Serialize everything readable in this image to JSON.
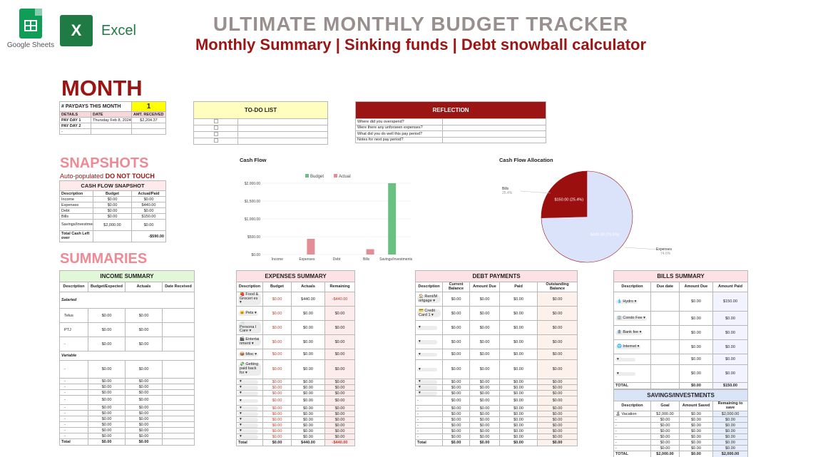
{
  "logos": {
    "google_sheets": "Google Sheets",
    "excel_mark": "X",
    "excel": "Excel"
  },
  "header": {
    "title": "ULTIMATE MONTHLY BUDGET TRACKER",
    "subtitle": "Monthly Summary | Sinking funds | Debt snowball calculator"
  },
  "month_heading": "MONTH",
  "paydays": {
    "label": "# PAYDAYS THIS MONTH",
    "count": "1",
    "columns": [
      "DETAILS",
      "DATE",
      "AMT. RECEIVED"
    ],
    "rows": [
      {
        "label": "PAY DAY 1",
        "date": "Thursday Feb 8, 2024",
        "amount": "$2,204.37"
      },
      {
        "label": "PAY DAY 2",
        "date": "",
        "amount": ""
      },
      {
        "label": "-",
        "date": "",
        "amount": ""
      }
    ]
  },
  "todo": {
    "title": "TO-DO LIST"
  },
  "reflection": {
    "title": "REFLECTION",
    "questions": [
      "Where did you overspend?",
      "Were there any unforseen expenses?",
      "What did you do well this pay period?",
      "Notes for next pay period?"
    ]
  },
  "snapshots": {
    "heading": "SNAPSHOTS",
    "note_prefix": "Auto-populated",
    "note_bold": "DO NOT TOUCH",
    "table_title": "CASH FLOW SNAPSHOT",
    "columns": [
      "Description",
      "Budget",
      "Actual/Paid"
    ],
    "rows": [
      {
        "d": "Income",
        "b": "$0.00",
        "a": "$0.00"
      },
      {
        "d": "Expenses",
        "b": "$0.00",
        "a": "$440.00"
      },
      {
        "d": "Debt",
        "b": "$0.00",
        "a": "$0.00"
      },
      {
        "d": "Bills",
        "b": "$0.00",
        "a": "$150.00"
      },
      {
        "d": "Savings/Investments",
        "b": "$2,000.00",
        "a": "$0.00"
      }
    ],
    "total_label": "Total Cash Left over",
    "total_value": "-$590.00"
  },
  "chart_data": [
    {
      "type": "bar",
      "title": "Cash Flow",
      "categories": [
        "Income",
        "Expenses",
        "Debt",
        "Bills",
        "Savings/Investments"
      ],
      "series": [
        {
          "name": "Budget",
          "values": [
            0,
            0,
            0,
            0,
            2000
          ],
          "color": "#6abf83"
        },
        {
          "name": "Actual",
          "values": [
            0,
            440,
            0,
            150,
            0
          ],
          "color": "#e38e95"
        }
      ],
      "yticks": [
        "$0.00",
        "$500.00",
        "$1,000.00",
        "$1,500.00",
        "$2,000.00"
      ],
      "ylim": [
        0,
        2000
      ],
      "legend": "top"
    },
    {
      "type": "pie",
      "title": "Cash Flow Allocation",
      "slices": [
        {
          "name": "Bills",
          "value": 150,
          "label": "$150.00 (25.4%)",
          "pct": "25.4%",
          "color": "#9b0f0f"
        },
        {
          "name": "Expenses",
          "value": 440,
          "label": "$440.00 (74.6%)",
          "pct": "74.6%",
          "color": "#dbe3fb"
        }
      ]
    }
  ],
  "summaries": {
    "heading": "SUMMARIES",
    "income": {
      "title": "INCOME SUMMARY",
      "columns": [
        "Description",
        "Budget/Expected",
        "Actuals",
        "Date Received"
      ],
      "salaried_label": "Salaried",
      "variable_label": "Variable",
      "salaried": [
        {
          "d": "Telus",
          "b": "$0.00",
          "a": "$0.00"
        },
        {
          "d": "PTJ",
          "b": "$0.00",
          "a": "$0.00"
        },
        {
          "d": "-",
          "b": "$0.00",
          "a": "$0.00"
        }
      ],
      "variable": [
        {
          "d": "-",
          "b": "$0.00",
          "a": "$0.00"
        },
        {
          "d": "-",
          "b": "$0.00",
          "a": "$0.00"
        },
        {
          "d": "-",
          "b": "$0.00",
          "a": "$0.00"
        },
        {
          "d": "-",
          "b": "$0.00",
          "a": "$0.00"
        },
        {
          "d": "-",
          "b": "$0.00",
          "a": "$0.00"
        },
        {
          "d": "-",
          "b": "$0.00",
          "a": "$0.00"
        },
        {
          "d": "-",
          "b": "$0.00",
          "a": "$0.00"
        },
        {
          "d": "-",
          "b": "$0.00",
          "a": "$0.00"
        },
        {
          "d": "-",
          "b": "$0.00",
          "a": "$0.00"
        },
        {
          "d": "-",
          "b": "$0.00",
          "a": "$0.00"
        },
        {
          "d": "-",
          "b": "$0.00",
          "a": "$0.00"
        }
      ],
      "total": {
        "d": "Total",
        "b": "$0.00",
        "a": "$0.00"
      }
    },
    "expenses": {
      "title": "EXPENSES SUMMARY",
      "columns": [
        "Description",
        "Budget",
        "Actuals",
        "Remaining"
      ],
      "rows": [
        {
          "icon": "🍓",
          "d": "Food & Groceri es",
          "b": "$0.00",
          "a": "$440.00",
          "r": "-$440.00"
        },
        {
          "icon": "🐱",
          "d": "Pets",
          "b": "$0.00",
          "a": "$0.00",
          "r": "$0.00"
        },
        {
          "icon": "🛁",
          "d": "Persona l Care",
          "b": "$0.00",
          "a": "$0.00",
          "r": "$0.00"
        },
        {
          "icon": "🎬",
          "d": "Entertai nment",
          "b": "$0.00",
          "a": "$0.00",
          "r": "$0.00"
        },
        {
          "icon": "📦",
          "d": "Misc",
          "b": "$0.00",
          "a": "$0.00",
          "r": "$0.00"
        },
        {
          "icon": "💸",
          "d": "Getting paid back for",
          "b": "$0.00",
          "a": "$0.00",
          "r": "$0.00"
        },
        {
          "icon": "",
          "d": "",
          "b": "$0.00",
          "a": "$0.00",
          "r": "$0.00"
        },
        {
          "icon": "",
          "d": "",
          "b": "$0.00",
          "a": "$0.00",
          "r": "$0.00"
        },
        {
          "icon": "",
          "d": "",
          "b": "$0.00",
          "a": "$0.00",
          "r": "$0.00"
        },
        {
          "icon": "",
          "d": "",
          "b": "$0.00",
          "a": "$0.00",
          "r": "$0.00"
        },
        {
          "icon": "",
          "d": "",
          "b": "$0.00",
          "a": "$0.00",
          "r": "$0.00"
        },
        {
          "icon": "",
          "d": "",
          "b": "$0.00",
          "a": "$0.00",
          "r": "$0.00"
        },
        {
          "icon": "",
          "d": "",
          "b": "$0.00",
          "a": "$0.00",
          "r": "$0.00"
        },
        {
          "icon": "",
          "d": "",
          "b": "$0.00",
          "a": "$0.00",
          "r": "$0.00"
        },
        {
          "icon": "",
          "d": "",
          "b": "$0.00",
          "a": "$0.00",
          "r": "$0.00"
        },
        {
          "icon": "",
          "d": "",
          "b": "$0.00",
          "a": "$0.00",
          "r": "$0.00"
        }
      ],
      "total": {
        "d": "Total",
        "b": "$0.00",
        "a": "$440.00",
        "r": "-$440.00"
      }
    },
    "debt": {
      "title": "DEBT PAYMENTS",
      "columns": [
        "Description",
        "Current Balance",
        "Amount Due",
        "Paid",
        "Outstanding Balance"
      ],
      "rows": [
        {
          "icon": "🏠",
          "d": "Rent/M ortgage",
          "c": "$0.00",
          "due": "$0.00",
          "p": "$0.00",
          "o": "$0.00"
        },
        {
          "icon": "💳",
          "d": "Credit Card 1",
          "c": "$0.00",
          "due": "$0.00",
          "p": "$0.00",
          "o": "$0.00"
        },
        {
          "icon": "",
          "d": "",
          "c": "$0.00",
          "due": "$0.00",
          "p": "$0.00",
          "o": "$0.00"
        },
        {
          "icon": "",
          "d": "",
          "c": "$0.00",
          "due": "$0.00",
          "p": "$0.00",
          "o": "$0.00"
        },
        {
          "icon": "",
          "d": "",
          "c": "$0.00",
          "due": "$0.00",
          "p": "$0.00",
          "o": "$0.00"
        },
        {
          "icon": "",
          "d": "",
          "c": "$0.00",
          "due": "$0.00",
          "p": "$0.00",
          "o": "$0.00"
        },
        {
          "icon": "",
          "d": "",
          "c": "$0.00",
          "due": "$0.00",
          "p": "$0.00",
          "o": "$0.00"
        },
        {
          "icon": "",
          "d": "",
          "c": "$0.00",
          "due": "$0.00",
          "p": "$0.00",
          "o": "$0.00"
        },
        {
          "icon": "",
          "d": "",
          "c": "$0.00",
          "due": "$0.00",
          "p": "$0.00",
          "o": "$0.00"
        },
        {
          "icon": "",
          "d": "-",
          "c": "$0.00",
          "due": "$0.00",
          "p": "$0.00",
          "o": "$0.00"
        },
        {
          "icon": "",
          "d": "-",
          "c": "$0.00",
          "due": "$0.00",
          "p": "$0.00",
          "o": "$0.00"
        },
        {
          "icon": "",
          "d": "-",
          "c": "$0.00",
          "due": "$0.00",
          "p": "$0.00",
          "o": "$0.00"
        },
        {
          "icon": "",
          "d": "-",
          "c": "$0.00",
          "due": "$0.00",
          "p": "$0.00",
          "o": "$0.00"
        },
        {
          "icon": "",
          "d": "-",
          "c": "$0.00",
          "due": "$0.00",
          "p": "$0.00",
          "o": "$0.00"
        },
        {
          "icon": "",
          "d": "-",
          "c": "$0.00",
          "due": "$0.00",
          "p": "$0.00",
          "o": "$0.00"
        },
        {
          "icon": "",
          "d": "-",
          "c": "$0.00",
          "due": "$0.00",
          "p": "$0.00",
          "o": "$0.00"
        }
      ],
      "total": {
        "d": "Total",
        "c": "$0.00",
        "due": "$0.00",
        "p": "$0.00",
        "o": "$0.00"
      }
    },
    "bills": {
      "title": "BILLS SUMMARY",
      "columns": [
        "Description",
        "Due date",
        "Amount Due",
        "Amount Paid"
      ],
      "rows": [
        {
          "icon": "💧",
          "d": "Hydro",
          "due": "$0.00",
          "p": "$150.00"
        },
        {
          "icon": "🏢",
          "d": "Condo Fee",
          "due": "$0.00",
          "p": "$0.00"
        },
        {
          "icon": "🏦",
          "d": "Bank fee",
          "due": "$0.00",
          "p": "$0.00"
        },
        {
          "icon": "🌐",
          "d": "Internet",
          "due": "$0.00",
          "p": "$0.00"
        },
        {
          "icon": "",
          "d": "",
          "due": "$0.00",
          "p": "$0.00"
        },
        {
          "icon": "",
          "d": "",
          "due": "$0.00",
          "p": "$0.00"
        }
      ],
      "total": {
        "d": "TOTAL",
        "due": "$0.00",
        "p": "$150.00"
      }
    },
    "savings": {
      "title": "SAVINGS/INVESTMENTS",
      "columns": [
        "Description",
        "Goal",
        "Amount Saved",
        "Remaining to save"
      ],
      "rows": [
        {
          "icon": "🏝",
          "d": "Vacation",
          "g": "$2,000.00",
          "s": "$0.00",
          "r": "$2,000.00"
        },
        {
          "icon": "",
          "d": "-",
          "g": "$0.00",
          "s": "$0.00",
          "r": "$0.00"
        },
        {
          "icon": "",
          "d": "-",
          "g": "$0.00",
          "s": "$0.00",
          "r": "$0.00"
        },
        {
          "icon": "",
          "d": "-",
          "g": "$0.00",
          "s": "$0.00",
          "r": "$0.00"
        },
        {
          "icon": "",
          "d": "-",
          "g": "$0.00",
          "s": "$0.00",
          "r": "$0.00"
        },
        {
          "icon": "",
          "d": "-",
          "g": "$0.00",
          "s": "$0.00",
          "r": "$0.00"
        },
        {
          "icon": "",
          "d": "-",
          "g": "$0.00",
          "s": "$0.00",
          "r": "$0.00"
        }
      ],
      "total": {
        "d": "TOTAL",
        "g": "$2,000.00",
        "s": "$0.00",
        "r": "$2,000.00"
      }
    }
  }
}
